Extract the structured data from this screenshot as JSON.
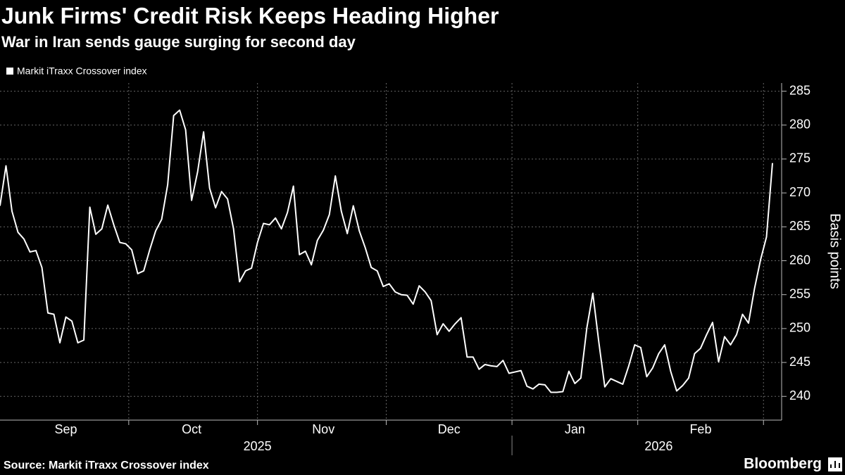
{
  "chart_data": {
    "type": "line",
    "title": "Junk Firms' Credit Risk Keeps Heading Higher",
    "subtitle": "War in Iran sends gauge surging for second day",
    "y_label": "Basis points",
    "source": "Source: Markit iTraxx Crossover index",
    "brand": "Bloomberg",
    "categories": [
      null,
      null,
      null,
      null,
      null,
      null,
      null,
      null,
      null,
      null,
      null,
      "Sep",
      null,
      null,
      null,
      null,
      null,
      null,
      null,
      null,
      null,
      null,
      null,
      null,
      null,
      null,
      null,
      null,
      null,
      null,
      null,
      null,
      "Oct",
      null,
      null,
      null,
      null,
      null,
      null,
      null,
      null,
      null,
      null,
      null,
      null,
      null,
      null,
      null,
      null,
      null,
      null,
      null,
      null,
      null,
      "Nov",
      null,
      null,
      null,
      null,
      null,
      null,
      null,
      null,
      null,
      null,
      null,
      null,
      null,
      null,
      null,
      null,
      null,
      null,
      null,
      null,
      "Dec",
      null,
      null,
      null,
      null,
      null,
      null,
      null,
      null,
      null,
      null,
      null,
      null,
      null,
      null,
      null,
      null,
      null,
      null,
      null,
      null,
      "Jan",
      null,
      null,
      null,
      null,
      null,
      null,
      null,
      null,
      null,
      null,
      null,
      null,
      null,
      null,
      null,
      null,
      null,
      null,
      null,
      null,
      "Feb",
      null,
      null,
      null,
      null,
      null,
      null,
      null,
      null,
      null,
      null,
      null,
      null
    ],
    "year_labels": [
      null,
      null,
      null,
      null,
      null,
      null,
      null,
      null,
      null,
      null,
      null,
      null,
      null,
      null,
      null,
      null,
      null,
      null,
      null,
      null,
      null,
      null,
      null,
      null,
      null,
      null,
      null,
      null,
      null,
      null,
      null,
      null,
      null,
      null,
      null,
      null,
      null,
      null,
      null,
      null,
      null,
      null,
      null,
      "2025",
      null,
      null,
      null,
      null,
      null,
      null,
      null,
      null,
      null,
      null,
      null,
      null,
      null,
      null,
      null,
      null,
      null,
      null,
      null,
      null,
      null,
      null,
      null,
      null,
      null,
      null,
      null,
      null,
      null,
      null,
      null,
      null,
      null,
      null,
      null,
      null,
      null,
      null,
      null,
      null,
      null,
      null,
      null,
      null,
      null,
      null,
      null,
      null,
      null,
      null,
      null,
      null,
      null,
      null,
      null,
      null,
      null,
      null,
      null,
      null,
      null,
      null,
      null,
      null,
      null,
      null,
      "2026",
      null,
      null,
      null,
      null,
      null,
      null,
      null,
      null,
      null,
      null,
      null,
      null,
      null,
      null,
      null,
      null,
      null,
      null,
      null
    ],
    "series": [
      {
        "name": "Markit iTraxx Crossover index",
        "color": "#ffffff",
        "values": [
          268.1,
          274.0,
          267.3,
          264.2,
          263.2,
          261.3,
          261.5,
          259.0,
          252.3,
          252.1,
          247.9,
          251.7,
          251.1,
          247.9,
          248.3,
          267.9,
          263.9,
          264.7,
          268.2,
          265.3,
          262.7,
          262.5,
          261.6,
          258.1,
          258.5,
          261.6,
          264.4,
          266.1,
          271.2,
          281.4,
          282.2,
          279.3,
          268.9,
          273.1,
          279.0,
          270.7,
          267.8,
          270.2,
          269.1,
          264.7,
          256.9,
          258.5,
          258.9,
          262.7,
          265.5,
          265.3,
          266.3,
          264.7,
          267.1,
          271.0,
          260.9,
          261.4,
          259.4,
          263.0,
          264.5,
          266.8,
          272.5,
          267.3,
          264.0,
          268.1,
          264.4,
          261.9,
          259.0,
          258.5,
          256.2,
          256.6,
          255.4,
          255.0,
          254.9,
          253.6,
          256.3,
          255.4,
          254.1,
          249.1,
          250.7,
          249.6,
          250.7,
          251.6,
          245.8,
          245.8,
          244.0,
          244.7,
          244.5,
          244.4,
          245.3,
          243.4,
          243.6,
          243.8,
          241.5,
          241.1,
          241.8,
          241.7,
          240.6,
          240.6,
          240.7,
          243.7,
          241.9,
          242.7,
          250.1,
          255.2,
          248.0,
          241.4,
          242.6,
          242.2,
          241.8,
          244.5,
          247.6,
          247.2,
          242.9,
          244.2,
          246.3,
          247.6,
          243.7,
          240.8,
          241.6,
          242.7,
          246.3,
          247.1,
          249.1,
          250.9,
          245.1,
          248.8,
          247.6,
          249.1,
          252.1,
          250.8,
          255.9,
          260.1,
          263.5,
          274.4
        ]
      }
    ],
    "ylim": [
      236.5,
      286.2
    ],
    "yticks": [
      240,
      245,
      250,
      255,
      260,
      265,
      270,
      275,
      280,
      285
    ],
    "grid": true
  }
}
